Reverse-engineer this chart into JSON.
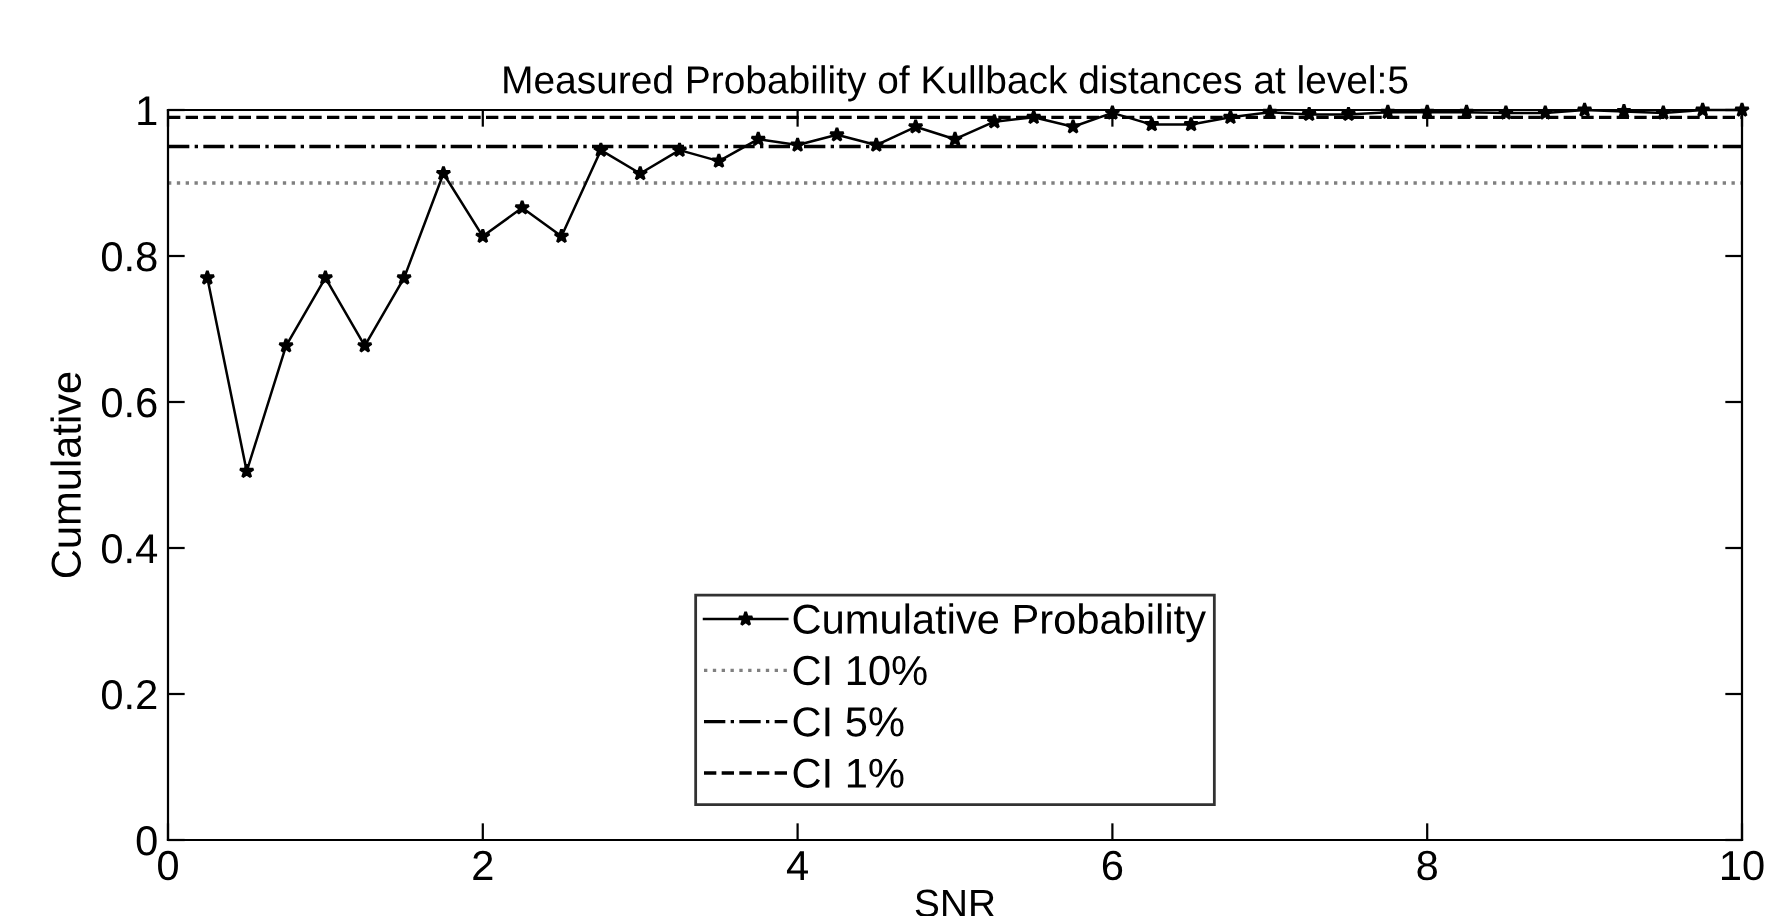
{
  "chart_data": {
    "type": "line",
    "title": "Measured Probability of Kullback distances at level:5",
    "xlabel": "SNR",
    "ylabel": "Cumulative",
    "series": [
      {
        "name": "Cumulative Probability",
        "color": "#000000",
        "marker": "star",
        "line_style": "solid",
        "x": [
          0.25,
          0.5,
          0.75,
          1,
          1.25,
          1.5,
          1.75,
          2,
          2.25,
          2.5,
          2.75,
          3,
          3.25,
          3.5,
          3.75,
          4,
          4.25,
          4.5,
          4.75,
          5,
          5.25,
          5.5,
          5.75,
          6,
          6.25,
          6.5,
          6.75,
          7,
          7.25,
          7.5,
          7.75,
          8,
          8.25,
          8.5,
          8.75,
          9,
          9.25,
          9.5,
          9.75,
          10
        ],
        "values": [
          0.77,
          0.505,
          0.677,
          0.77,
          0.677,
          0.77,
          0.913,
          0.827,
          0.866,
          0.827,
          0.945,
          0.913,
          0.945,
          0.93,
          0.96,
          0.952,
          0.966,
          0.952,
          0.977,
          0.96,
          0.984,
          0.99,
          0.977,
          0.996,
          0.98,
          0.98,
          0.99,
          0.997,
          0.994,
          0.994,
          0.997,
          0.997,
          0.997,
          0.996,
          0.996,
          1.0,
          0.998,
          0.996,
          1.0,
          1.0
        ]
      }
    ],
    "ref_lines": [
      {
        "axis": "y",
        "value": 0.9,
        "label": "CI 10%",
        "color": "#808080",
        "line_style": "dotted"
      },
      {
        "axis": "y",
        "value": 0.95,
        "label": "CI 5%",
        "color": "#000000",
        "line_style": "dashdot"
      },
      {
        "axis": "y",
        "value": 0.99,
        "label": "CI 1%",
        "color": "#000000",
        "line_style": "dashed"
      }
    ],
    "xlim": [
      0,
      10
    ],
    "xticks": [
      0,
      2,
      4,
      6,
      8,
      10
    ],
    "ylim": [
      0,
      1
    ],
    "yticks": [
      0,
      0.2,
      0.4,
      0.6,
      0.8,
      1
    ],
    "grid": false,
    "legend": "bottom"
  }
}
